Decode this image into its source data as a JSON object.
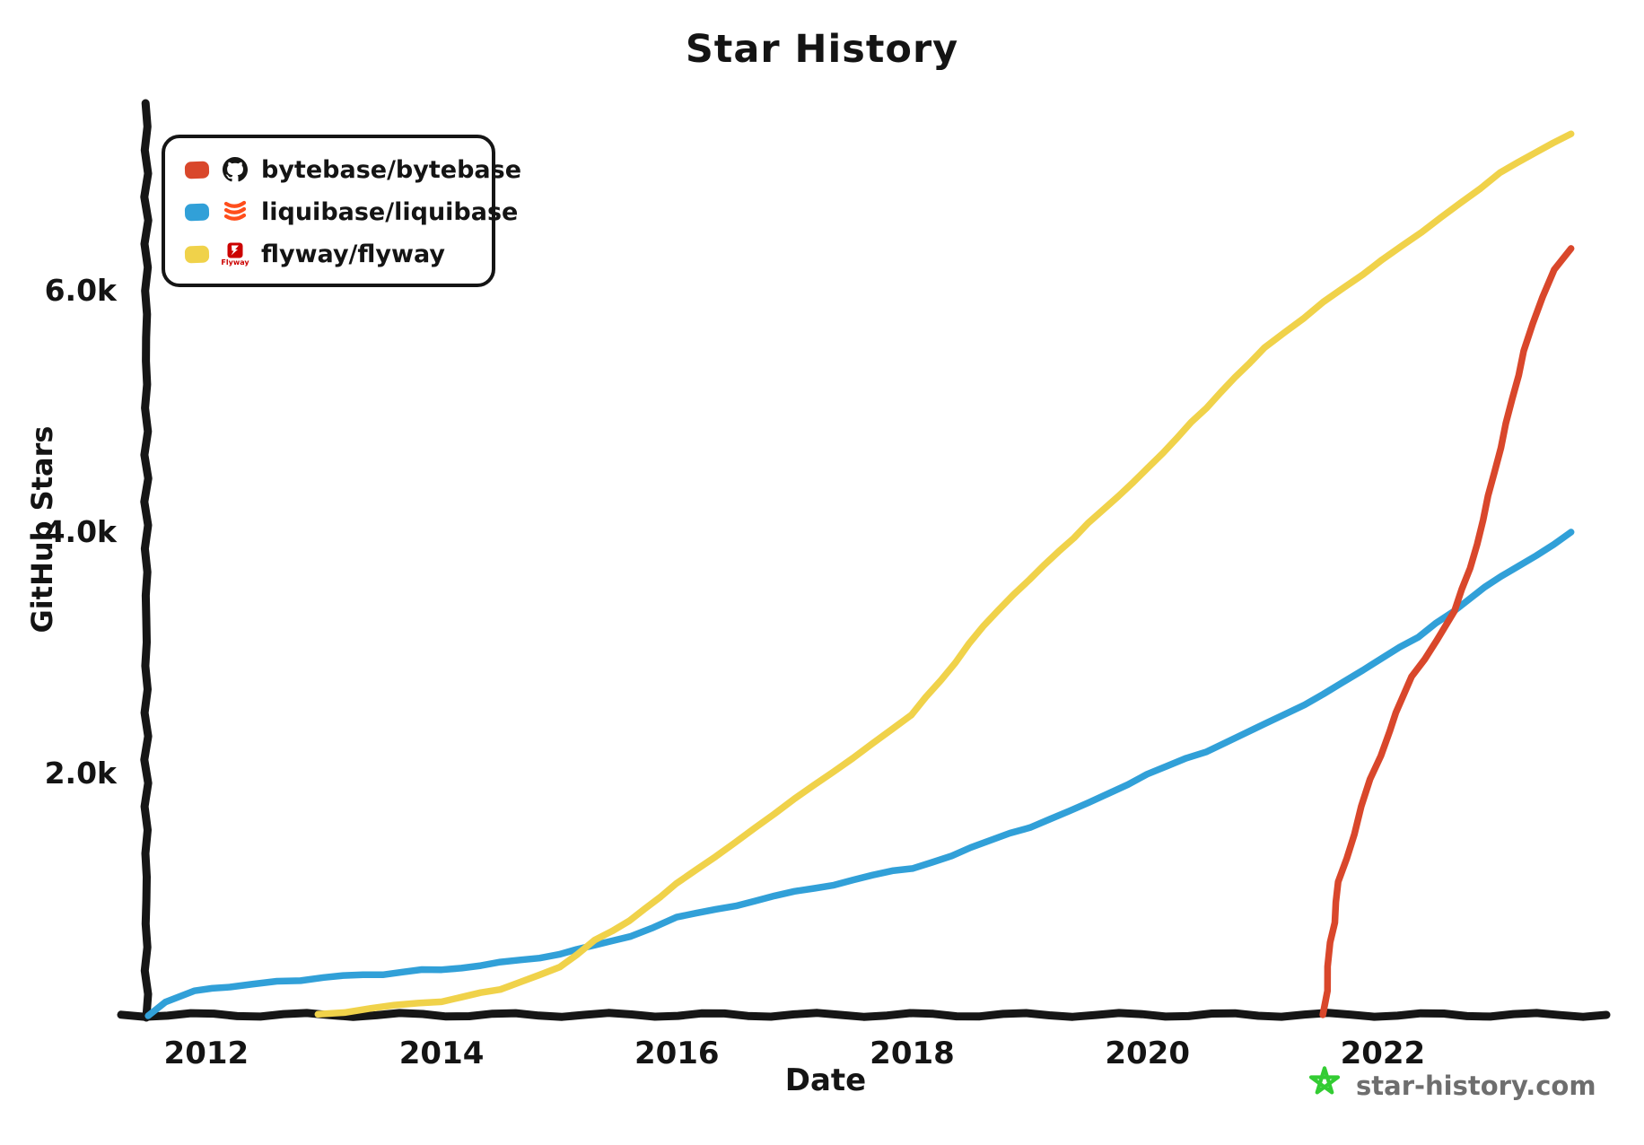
{
  "title": "Star History",
  "legend": {
    "items": [
      {
        "label": "bytebase/bytebase",
        "color": "#D9472B",
        "icon": "github-icon"
      },
      {
        "label": "liquibase/liquibase",
        "color": "#31A0D8",
        "icon": "liquibase-icon"
      },
      {
        "label": "flyway/flyway",
        "color": "#F0D24A",
        "icon": "flyway-icon",
        "icon_text": "Flyway"
      }
    ]
  },
  "watermark": {
    "text": "star-history.com",
    "star_color": "#33CC33",
    "text_color": "#6E6E6E"
  },
  "chart_data": {
    "type": "line",
    "title": "Star History",
    "xlabel": "Date",
    "ylabel": "GitHub Stars",
    "grid": false,
    "legend_position": "top-left",
    "axis_color": "#161616",
    "x_range": [
      2011.49,
      2023.9
    ],
    "y_range": [
      0,
      7554
    ],
    "x_ticks": [
      {
        "label": "2012",
        "value": 2012
      },
      {
        "label": "2014",
        "value": 2014
      },
      {
        "label": "2016",
        "value": 2016
      },
      {
        "label": "2018",
        "value": 2018
      },
      {
        "label": "2020",
        "value": 2020
      },
      {
        "label": "2022",
        "value": 2022
      }
    ],
    "y_ticks": [
      {
        "label": "2.0k",
        "value": 2000
      },
      {
        "label": "4.0k",
        "value": 4000
      },
      {
        "label": "6.0k",
        "value": 6000
      }
    ],
    "series": [
      {
        "name": "liquibase/liquibase",
        "color": "#31A0D8",
        "points": [
          [
            2011.5,
            0
          ],
          [
            2011.65,
            110
          ],
          [
            2011.9,
            190
          ],
          [
            2012.2,
            240
          ],
          [
            2012.6,
            275
          ],
          [
            2013,
            305
          ],
          [
            2013.5,
            340
          ],
          [
            2014,
            380
          ],
          [
            2014.5,
            430
          ],
          [
            2015,
            500
          ],
          [
            2015.3,
            575
          ],
          [
            2015.6,
            655
          ],
          [
            2016,
            800
          ],
          [
            2016.5,
            910
          ],
          [
            2017,
            1020
          ],
          [
            2017.5,
            1115
          ],
          [
            2018,
            1220
          ],
          [
            2018.5,
            1380
          ],
          [
            2019,
            1555
          ],
          [
            2019.5,
            1765
          ],
          [
            2020,
            1985
          ],
          [
            2020.5,
            2185
          ],
          [
            2021,
            2420
          ],
          [
            2021.5,
            2650
          ],
          [
            2022,
            2950
          ],
          [
            2022.3,
            3130
          ],
          [
            2022.6,
            3350
          ],
          [
            2023,
            3640
          ],
          [
            2023.3,
            3810
          ],
          [
            2023.6,
            4000
          ]
        ]
      },
      {
        "name": "flyway/flyway",
        "color": "#F0D24A",
        "points": [
          [
            2012.95,
            0
          ],
          [
            2013.4,
            50
          ],
          [
            2014,
            115
          ],
          [
            2014.5,
            210
          ],
          [
            2015,
            400
          ],
          [
            2015.3,
            620
          ],
          [
            2015.6,
            770
          ],
          [
            2016,
            1080
          ],
          [
            2016.5,
            1420
          ],
          [
            2017,
            1780
          ],
          [
            2017.5,
            2120
          ],
          [
            2018,
            2480
          ],
          [
            2018.6,
            3220
          ],
          [
            2019,
            3600
          ],
          [
            2019.5,
            4070
          ],
          [
            2020,
            4540
          ],
          [
            2020.5,
            5030
          ],
          [
            2021,
            5520
          ],
          [
            2021.5,
            5900
          ],
          [
            2022,
            6250
          ],
          [
            2022.5,
            6600
          ],
          [
            2023,
            6970
          ],
          [
            2023.3,
            7140
          ],
          [
            2023.6,
            7300
          ]
        ]
      },
      {
        "name": "bytebase/bytebase",
        "color": "#D9472B",
        "points": [
          [
            2021.5,
            0
          ],
          [
            2021.56,
            600
          ],
          [
            2021.63,
            1100
          ],
          [
            2021.75,
            1500
          ],
          [
            2021.9,
            1950
          ],
          [
            2022.05,
            2350
          ],
          [
            2022.25,
            2800
          ],
          [
            2022.45,
            3100
          ],
          [
            2022.6,
            3350
          ],
          [
            2022.75,
            3700
          ],
          [
            2022.9,
            4300
          ],
          [
            2023.05,
            4900
          ],
          [
            2023.2,
            5500
          ],
          [
            2023.35,
            5950
          ],
          [
            2023.45,
            6180
          ],
          [
            2023.6,
            6350
          ]
        ]
      }
    ]
  }
}
